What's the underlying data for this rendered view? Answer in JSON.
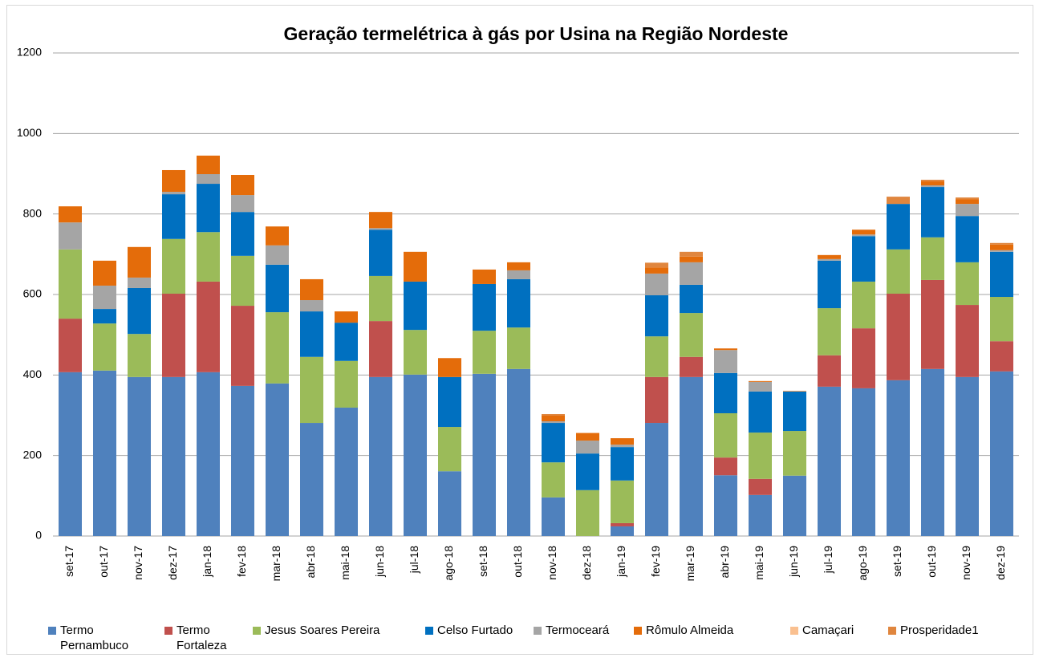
{
  "chart_data": {
    "type": "stacked_bar",
    "title": "Geração termelétrica à gás por Usina na Região Nordeste",
    "categories": [
      "set-17",
      "out-17",
      "nov-17",
      "dez-17",
      "jan-18",
      "fev-18",
      "mar-18",
      "abr-18",
      "mai-18",
      "jun-18",
      "jul-18",
      "ago-18",
      "set-18",
      "out-18",
      "nov-18",
      "dez-18",
      "jan-19",
      "fev-19",
      "mar-19",
      "abr-19",
      "mai-19",
      "jun-19",
      "jul-19",
      "ago-19",
      "set-19",
      "out-19",
      "nov-19",
      "dez-19"
    ],
    "series": [
      {
        "name": "Termo Pernambuco",
        "color": "#4f81bd",
        "values": [
          407,
          411,
          395,
          395,
          407,
          373,
          379,
          281,
          319,
          395,
          401,
          161,
          403,
          415,
          96,
          0,
          24,
          281,
          395,
          151,
          102,
          150,
          371,
          367,
          387,
          415,
          395,
          409
        ]
      },
      {
        "name": "Termo Fortaleza",
        "color": "#c0504d",
        "values": [
          133,
          0,
          0,
          207,
          225,
          199,
          0,
          0,
          0,
          139,
          0,
          0,
          0,
          0,
          0,
          0,
          8,
          114,
          50,
          44,
          40,
          0,
          78,
          149,
          215,
          221,
          179,
          75
        ]
      },
      {
        "name": "Jesus Soares Pereira",
        "color": "#9bbb59",
        "values": [
          172,
          117,
          107,
          136,
          123,
          124,
          177,
          164,
          116,
          112,
          111,
          110,
          107,
          103,
          87,
          114,
          106,
          101,
          109,
          110,
          115,
          111,
          117,
          116,
          110,
          106,
          106,
          110
        ]
      },
      {
        "name": "Celso Furtado",
        "color": "#0070c0",
        "values": [
          0,
          36,
          114,
          111,
          120,
          109,
          118,
          113,
          95,
          115,
          120,
          124,
          116,
          120,
          98,
          91,
          83,
          102,
          70,
          100,
          102,
          98,
          118,
          113,
          113,
          125,
          115,
          112
        ]
      },
      {
        "name": "Termoceará",
        "color": "#a5a5a5",
        "values": [
          67,
          58,
          26,
          6,
          24,
          42,
          48,
          28,
          0,
          4,
          0,
          0,
          0,
          22,
          4,
          32,
          6,
          54,
          56,
          57,
          24,
          0,
          4,
          4,
          0,
          4,
          30,
          4
        ]
      },
      {
        "name": "Rômulo Almeida",
        "color": "#e46c0a",
        "values": [
          40,
          62,
          76,
          54,
          46,
          50,
          47,
          52,
          28,
          40,
          74,
          47,
          36,
          20,
          14,
          19,
          16,
          15,
          14,
          4,
          2,
          1,
          10,
          12,
          0,
          10,
          12,
          14
        ]
      },
      {
        "name": "Camaçari",
        "color": "#fac090",
        "values": [
          0,
          0,
          0,
          0,
          0,
          0,
          0,
          0,
          0,
          0,
          0,
          0,
          0,
          0,
          0,
          0,
          0,
          0,
          0,
          0,
          0,
          1,
          0,
          0,
          0,
          0,
          0,
          0
        ]
      },
      {
        "name": "Prosperidade1",
        "color": "#e0863e",
        "values": [
          0,
          0,
          0,
          0,
          0,
          0,
          0,
          0,
          0,
          0,
          0,
          0,
          0,
          0,
          4,
          0,
          0,
          12,
          12,
          0,
          0,
          0,
          0,
          0,
          18,
          4,
          4,
          4
        ]
      }
    ],
    "ylim": [
      0,
      1200
    ],
    "yticks": [
      0,
      200,
      400,
      600,
      800,
      1000,
      1200
    ],
    "grid": true
  }
}
